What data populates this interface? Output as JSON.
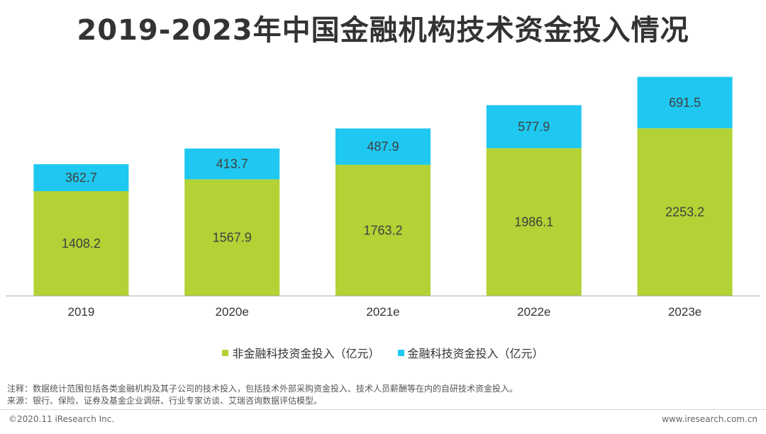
{
  "title": "2019-2023年中国金融机构技术资金投入情况",
  "colors": {
    "non_fintech": "#b2d235",
    "fintech": "#1ec8f0",
    "axis": "#aaaaaa",
    "label": "#404040"
  },
  "legend": {
    "items": [
      {
        "label": "非金融科技资金投入（亿元）",
        "color": "#b2d235"
      },
      {
        "label": "金融科技资金投入（亿元）",
        "color": "#1ec8f0"
      }
    ]
  },
  "notes": {
    "note": "注释：数据统计范围包括各类金融机构及其子公司的技术投入，包括技术外部采购资金投入、技术人员薪酬等在内的自研技术资金投入。",
    "source": "来源：银行、保险、证券及基金企业调研、行业专家访谈、艾瑞咨询数据评估模型。"
  },
  "footer": {
    "left": "©2020.11 iResearch Inc.",
    "right": "www.iresearch.com.cn"
  },
  "chart_data": {
    "type": "bar",
    "stacked": true,
    "title": "2019-2023年中国金融机构技术资金投入情况",
    "categories": [
      "2019",
      "2020e",
      "2021e",
      "2022e",
      "2023e"
    ],
    "series": [
      {
        "name": "非金融科技资金投入（亿元）",
        "values": [
          1408.2,
          1567.9,
          1763.2,
          1986.1,
          2253.2
        ]
      },
      {
        "name": "金融科技资金投入（亿元）",
        "values": [
          362.7,
          413.7,
          487.9,
          577.9,
          691.5
        ]
      }
    ],
    "xlabel": "",
    "ylabel": "",
    "ylim": [
      0,
      2950
    ],
    "grid": false,
    "legend_position": "bottom"
  }
}
